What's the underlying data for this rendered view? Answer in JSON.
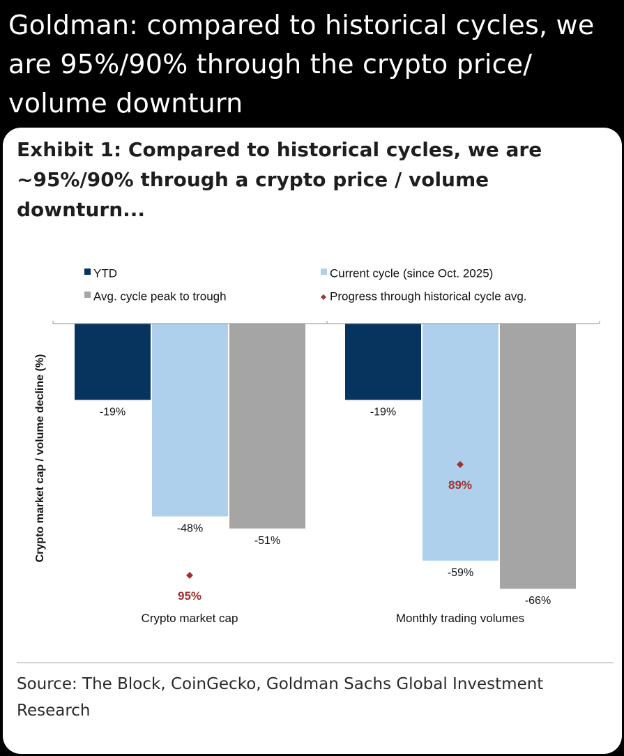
{
  "post": {
    "text": "Goldman: compared to historical cycles, we are 95%/90% through the crypto price/ volume downturn"
  },
  "exhibit": {
    "title": "Exhibit 1: Compared to historical cycles, we are ~95%/90% through a crypto price / volume downturn...",
    "source": "Source: The Block, CoinGecko, Goldman Sachs Global Investment Research"
  },
  "chart_data": {
    "type": "bar",
    "ylabel": "Crypto market cap / volume decline (%)",
    "ylim": [
      -70,
      0
    ],
    "grid": false,
    "legend_position": "top",
    "categories": [
      "Crypto market cap",
      "Monthly trading volumes"
    ],
    "series": [
      {
        "name": "YTD",
        "values": [
          -19,
          -19
        ],
        "labels": [
          "-19%",
          "-19%"
        ],
        "color": "#06345f"
      },
      {
        "name": "Current cycle (since Oct. 2025)",
        "values": [
          -48,
          -59
        ],
        "labels": [
          "-48%",
          "-59%"
        ],
        "color": "#aed0ed"
      },
      {
        "name": "Avg. cycle peak to trough",
        "values": [
          -51,
          -66
        ],
        "labels": [
          "-51%",
          "-66%"
        ],
        "color": "#a5a5a5"
      }
    ],
    "markers": {
      "name": "Progress through historical cycle avg.",
      "labels": [
        "95%",
        "89%"
      ],
      "color": "#a0312f"
    }
  }
}
